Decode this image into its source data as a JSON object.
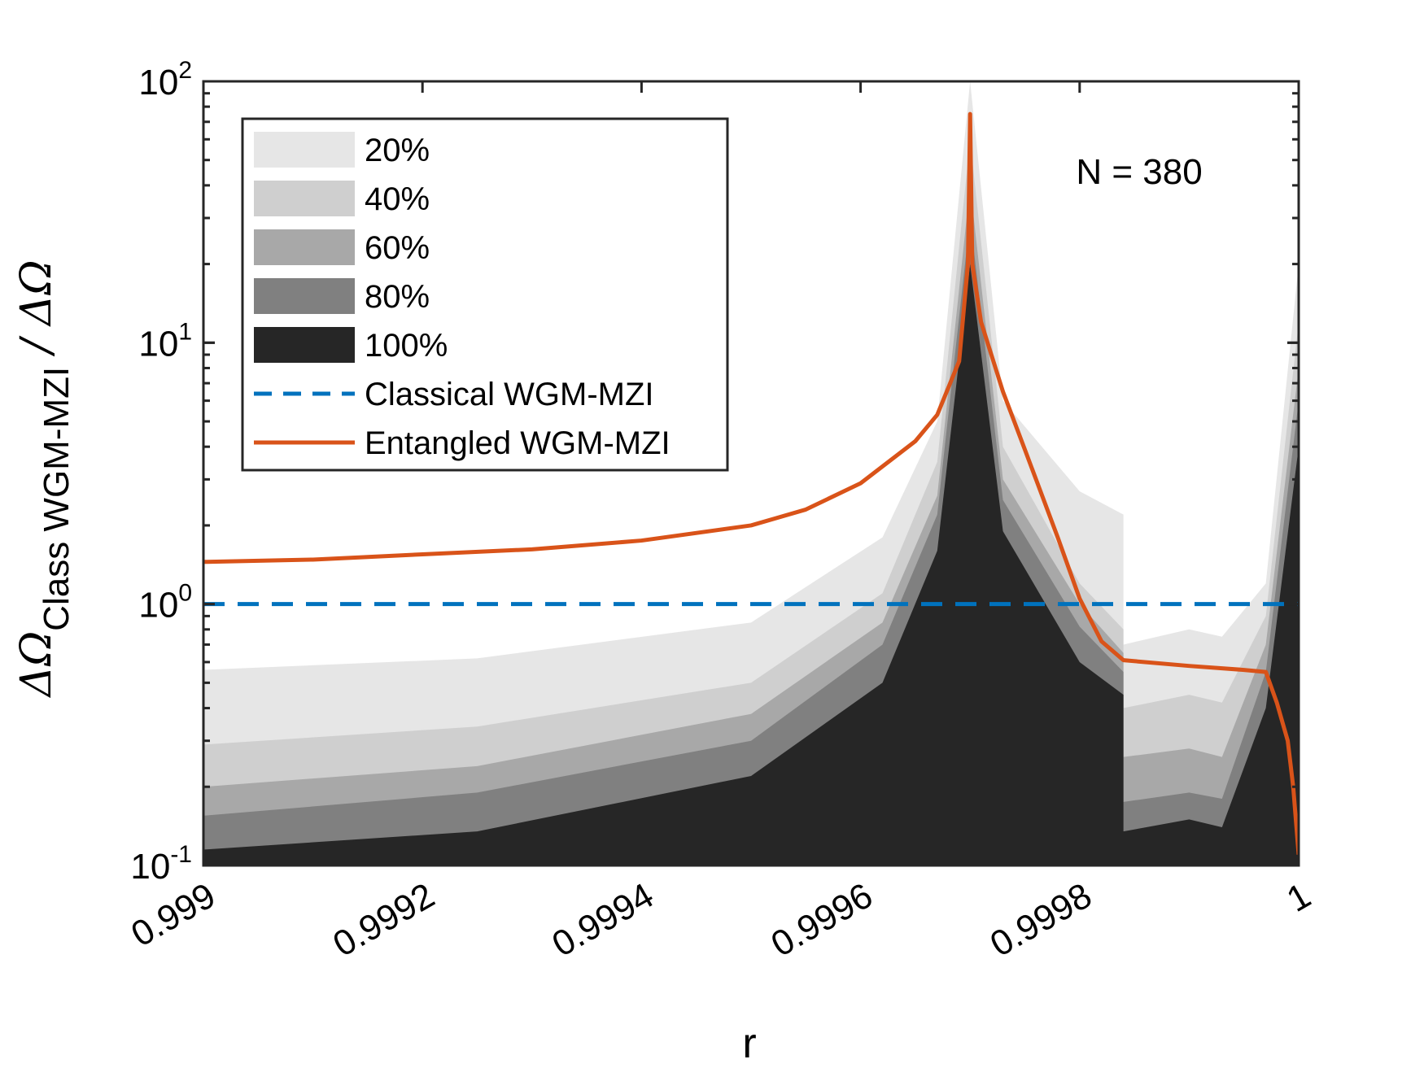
{
  "chart_data": {
    "type": "area",
    "xlabel": "r",
    "ylabel": {
      "prefix": "ΔΩ",
      "subscript": "Class WGM-MZI",
      "suffix": " / ΔΩ"
    },
    "xlim": [
      0.999,
      1.0
    ],
    "ylim": [
      0.1,
      100
    ],
    "yscale": "log",
    "annotation": "N = 380",
    "x_ticks": [
      {
        "value": 0.999,
        "label": "0.999"
      },
      {
        "value": 0.9992,
        "label": "0.9992"
      },
      {
        "value": 0.9994,
        "label": "0.9994"
      },
      {
        "value": 0.9996,
        "label": "0.9996"
      },
      {
        "value": 0.9998,
        "label": "0.9998"
      },
      {
        "value": 1.0,
        "label": "1"
      }
    ],
    "y_ticks": [
      {
        "value": 0.1,
        "base": "10",
        "exp": "-1"
      },
      {
        "value": 1,
        "base": "10",
        "exp": "0"
      },
      {
        "value": 10,
        "base": "10",
        "exp": "1"
      },
      {
        "value": 100,
        "base": "10",
        "exp": "2"
      }
    ],
    "legend_position": "top-left",
    "bands": [
      {
        "name": "20%",
        "color": "#e6e6e6",
        "x": [
          0.999,
          0.99925,
          0.9995,
          0.99962,
          0.99967,
          0.9997,
          0.99973,
          0.9998,
          0.99984,
          0.99984,
          0.9999,
          0.99993,
          0.99997,
          1.0
        ],
        "top": [
          0.56,
          0.62,
          0.85,
          1.8,
          5,
          100,
          6,
          2.7,
          2.2,
          0.7,
          0.8,
          0.75,
          1.2,
          20
        ]
      },
      {
        "name": "40%",
        "color": "#cfcfcf",
        "x": [
          0.999,
          0.99925,
          0.9995,
          0.99962,
          0.99967,
          0.9997,
          0.99973,
          0.9998,
          0.99984,
          0.99984,
          0.9999,
          0.99993,
          0.99997,
          1.0
        ],
        "top": [
          0.29,
          0.34,
          0.5,
          1.1,
          3.5,
          60,
          4,
          1.2,
          0.8,
          0.4,
          0.45,
          0.42,
          0.9,
          12
        ]
      },
      {
        "name": "60%",
        "color": "#a8a8a8",
        "x": [
          0.999,
          0.99925,
          0.9995,
          0.99962,
          0.99967,
          0.9997,
          0.99973,
          0.9998,
          0.99984,
          0.99984,
          0.9999,
          0.99993,
          0.99997,
          1.0
        ],
        "top": [
          0.2,
          0.24,
          0.38,
          0.85,
          2.6,
          40,
          3,
          1.0,
          0.65,
          0.26,
          0.28,
          0.26,
          0.7,
          8
        ]
      },
      {
        "name": "80%",
        "color": "#808080",
        "x": [
          0.999,
          0.99925,
          0.9995,
          0.99962,
          0.99967,
          0.9997,
          0.99973,
          0.9998,
          0.99984,
          0.99984,
          0.9999,
          0.99993,
          0.99997,
          1.0
        ],
        "top": [
          0.155,
          0.19,
          0.3,
          0.7,
          2.2,
          30,
          2.5,
          0.82,
          0.55,
          0.175,
          0.19,
          0.18,
          0.55,
          6
        ]
      },
      {
        "name": "100%",
        "color": "#262626",
        "x": [
          0.999,
          0.99925,
          0.9995,
          0.99962,
          0.99967,
          0.9997,
          0.99973,
          0.9998,
          0.99984,
          0.99984,
          0.9999,
          0.99993,
          0.99997,
          1.0
        ],
        "top": [
          0.115,
          0.135,
          0.22,
          0.5,
          1.6,
          20,
          1.9,
          0.6,
          0.45,
          0.135,
          0.15,
          0.14,
          0.4,
          4
        ]
      }
    ],
    "series": [
      {
        "name": "Classical WGM-MZI",
        "color": "#0072bd",
        "style": "dashed",
        "x": [
          0.999,
          1.0
        ],
        "y": [
          1,
          1
        ]
      },
      {
        "name": "Entangled WGM-MZI",
        "color": "#d95319",
        "style": "solid",
        "x": [
          0.999,
          0.9991,
          0.9992,
          0.9993,
          0.9994,
          0.9995,
          0.99955,
          0.9996,
          0.99965,
          0.99967,
          0.99969,
          0.999698,
          0.9997,
          0.999702,
          0.99971,
          0.99973,
          0.99975,
          0.99978,
          0.9998,
          0.99982,
          0.99984,
          0.9999,
          0.99995,
          0.99997,
          0.99998,
          0.99999,
          0.999995,
          0.99999999
        ],
        "y": [
          1.45,
          1.48,
          1.55,
          1.62,
          1.75,
          2.0,
          2.3,
          2.9,
          4.2,
          5.3,
          8.5,
          20,
          75,
          20,
          12,
          6.5,
          3.9,
          1.8,
          1.05,
          0.72,
          0.61,
          0.58,
          0.56,
          0.55,
          0.42,
          0.3,
          0.2,
          0.11
        ]
      }
    ]
  }
}
